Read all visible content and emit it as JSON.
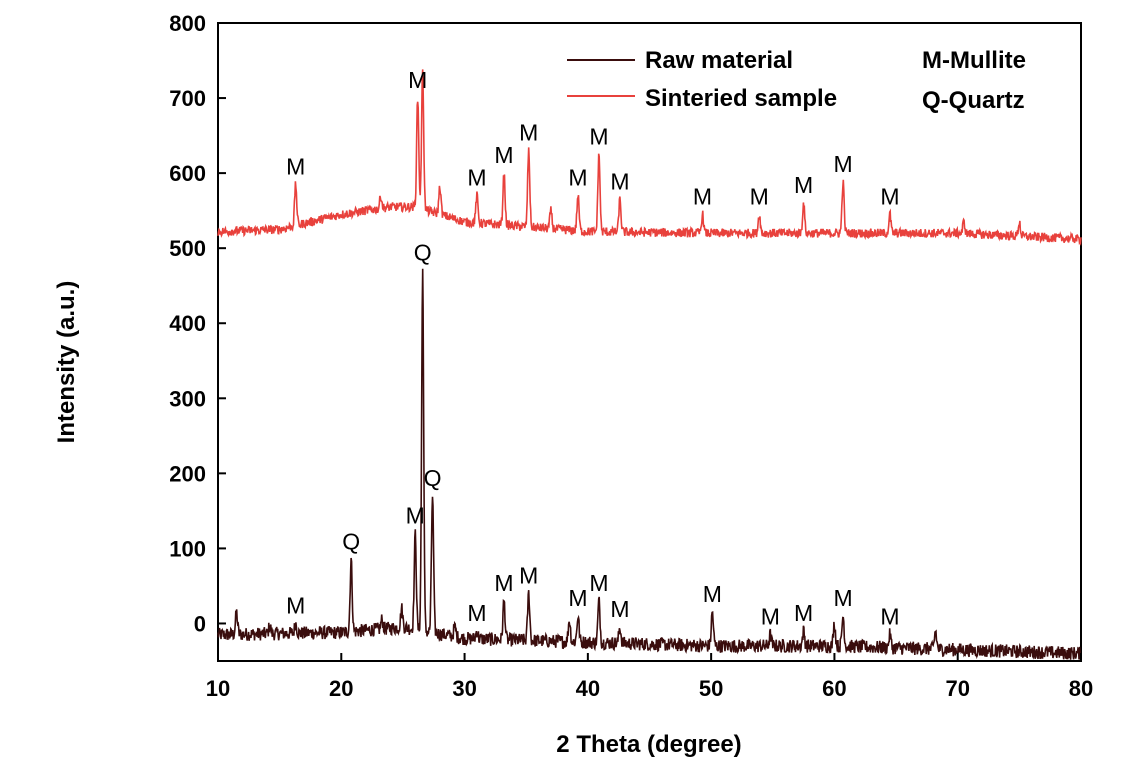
{
  "chart_data": {
    "type": "line",
    "xlabel": "2 Theta (degree)",
    "ylabel": "Intensity (a.u.)",
    "xlim": [
      10,
      80
    ],
    "ylim": [
      -50,
      800
    ],
    "xticks": [
      10,
      20,
      30,
      40,
      50,
      60,
      70,
      80
    ],
    "yticks": [
      0,
      100,
      200,
      300,
      400,
      500,
      600,
      700,
      800
    ],
    "legend_position": "top-center",
    "phase_key": [
      "M-Mullite",
      "Q-Quartz"
    ],
    "series": [
      {
        "name": "Raw material",
        "color": "#3a0d0d",
        "baseline": [
          [
            10,
            -15
          ],
          [
            20,
            -12
          ],
          [
            25,
            -5
          ],
          [
            30,
            -20
          ],
          [
            40,
            -25
          ],
          [
            50,
            -30
          ],
          [
            60,
            -30
          ],
          [
            70,
            -35
          ],
          [
            80,
            -40
          ]
        ],
        "peaks": [
          {
            "x": 11.5,
            "y": 15,
            "label": ""
          },
          {
            "x": 14.2,
            "y": -3,
            "label": ""
          },
          {
            "x": 16.3,
            "y": 0,
            "label": "M"
          },
          {
            "x": 20.8,
            "y": 85,
            "label": "Q"
          },
          {
            "x": 23.3,
            "y": 5,
            "label": ""
          },
          {
            "x": 24.9,
            "y": 20,
            "label": ""
          },
          {
            "x": 26.0,
            "y": 120,
            "label": "M"
          },
          {
            "x": 26.6,
            "y": 470,
            "label": "Q"
          },
          {
            "x": 27.4,
            "y": 170,
            "label": "Q"
          },
          {
            "x": 29.2,
            "y": -5,
            "label": ""
          },
          {
            "x": 31.0,
            "y": -10,
            "label": "M"
          },
          {
            "x": 33.2,
            "y": 30,
            "label": "M"
          },
          {
            "x": 35.2,
            "y": 40,
            "label": "M"
          },
          {
            "x": 38.5,
            "y": 5,
            "label": ""
          },
          {
            "x": 39.2,
            "y": 10,
            "label": "M"
          },
          {
            "x": 40.9,
            "y": 30,
            "label": "M"
          },
          {
            "x": 42.6,
            "y": -5,
            "label": "M"
          },
          {
            "x": 50.1,
            "y": 15,
            "label": "M"
          },
          {
            "x": 54.8,
            "y": -15,
            "label": "M"
          },
          {
            "x": 57.5,
            "y": -10,
            "label": "M"
          },
          {
            "x": 60.0,
            "y": 0,
            "label": ""
          },
          {
            "x": 60.7,
            "y": 10,
            "label": "M"
          },
          {
            "x": 64.5,
            "y": -15,
            "label": "M"
          },
          {
            "x": 68.2,
            "y": -10,
            "label": ""
          }
        ]
      },
      {
        "name": "Sinteried sample",
        "color": "#e8413c",
        "baseline": [
          [
            10,
            522
          ],
          [
            15,
            525
          ],
          [
            20,
            545
          ],
          [
            24,
            555
          ],
          [
            26,
            555
          ],
          [
            30,
            535
          ],
          [
            40,
            522
          ],
          [
            50,
            520
          ],
          [
            60,
            520
          ],
          [
            70,
            520
          ],
          [
            80,
            512
          ]
        ],
        "peaks": [
          {
            "x": 16.3,
            "y": 585,
            "label": "M"
          },
          {
            "x": 23.2,
            "y": 570,
            "label": ""
          },
          {
            "x": 26.2,
            "y": 700,
            "label": "M"
          },
          {
            "x": 26.6,
            "y": 740,
            "label": ""
          },
          {
            "x": 28.0,
            "y": 582,
            "label": ""
          },
          {
            "x": 31.0,
            "y": 570,
            "label": "M"
          },
          {
            "x": 33.2,
            "y": 600,
            "label": "M"
          },
          {
            "x": 35.2,
            "y": 630,
            "label": "M"
          },
          {
            "x": 37.0,
            "y": 550,
            "label": ""
          },
          {
            "x": 39.2,
            "y": 570,
            "label": "M"
          },
          {
            "x": 40.9,
            "y": 625,
            "label": "M"
          },
          {
            "x": 42.6,
            "y": 565,
            "label": "M"
          },
          {
            "x": 49.3,
            "y": 545,
            "label": "M"
          },
          {
            "x": 53.9,
            "y": 545,
            "label": "M"
          },
          {
            "x": 57.5,
            "y": 560,
            "label": "M"
          },
          {
            "x": 60.7,
            "y": 588,
            "label": "M"
          },
          {
            "x": 64.5,
            "y": 545,
            "label": "M"
          },
          {
            "x": 70.5,
            "y": 535,
            "label": ""
          },
          {
            "x": 75.0,
            "y": 535,
            "label": ""
          }
        ]
      }
    ]
  }
}
